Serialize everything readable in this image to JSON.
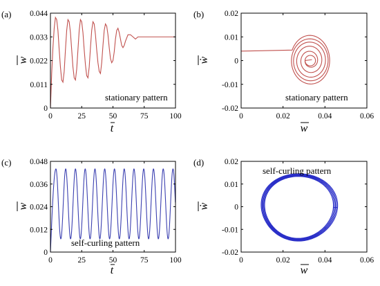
{
  "chart_data": [
    {
      "panel_label": "(a)",
      "type": "line",
      "x_label": "t",
      "y_label": "w",
      "xlim": [
        0,
        100
      ],
      "ylim": [
        0,
        0.044
      ],
      "xticks": [
        "0",
        "25",
        "50",
        "75",
        "100"
      ],
      "yticks": [
        "0",
        "0.011",
        "0.022",
        "0.033",
        "0.044"
      ],
      "annotation": "stationary pattern",
      "color": "#c0504d",
      "series": [
        {
          "x": [
            0,
            1,
            2,
            3,
            4,
            5,
            6,
            7,
            8,
            9,
            10,
            11,
            12,
            13,
            14,
            15,
            16,
            17,
            18,
            19,
            20,
            21,
            22,
            23,
            24,
            25,
            26,
            27,
            28,
            29,
            30,
            31,
            32,
            33,
            34,
            35,
            36,
            37,
            38,
            39,
            40,
            41,
            42,
            43,
            44,
            45,
            46,
            47,
            48,
            49,
            50,
            51,
            52,
            53,
            54,
            55,
            56,
            57,
            58,
            59,
            60,
            62,
            64,
            66,
            68,
            70,
            75,
            80,
            90,
            100
          ],
          "y": [
            0,
            0.016,
            0.028,
            0.037,
            0.042,
            0.041,
            0.036,
            0.027,
            0.019,
            0.013,
            0.012,
            0.017,
            0.027,
            0.036,
            0.041,
            0.04,
            0.035,
            0.027,
            0.019,
            0.014,
            0.013,
            0.018,
            0.027,
            0.036,
            0.041,
            0.04,
            0.035,
            0.027,
            0.02,
            0.015,
            0.014,
            0.019,
            0.028,
            0.036,
            0.04,
            0.039,
            0.034,
            0.027,
            0.021,
            0.017,
            0.016,
            0.021,
            0.029,
            0.036,
            0.039,
            0.038,
            0.034,
            0.028,
            0.023,
            0.021,
            0.022,
            0.026,
            0.032,
            0.036,
            0.037,
            0.035,
            0.032,
            0.029,
            0.028,
            0.029,
            0.031,
            0.034,
            0.034,
            0.033,
            0.032,
            0.033,
            0.033,
            0.033,
            0.033,
            0.033
          ]
        }
      ]
    },
    {
      "panel_label": "(b)",
      "type": "line",
      "x_label": "w",
      "y_label": "ẇ",
      "xlim": [
        0,
        0.06
      ],
      "ylim": [
        -0.02,
        0.02
      ],
      "xticks": [
        "0",
        "0.02",
        "0.04",
        "0.06"
      ],
      "yticks": [
        "-0.02",
        "-0.01",
        "0",
        "0.01",
        "0.02"
      ],
      "annotation": "stationary pattern",
      "color": "#c0504d",
      "spiral": {
        "start": [
          0,
          0.004
        ],
        "center": [
          0.033,
          0.0
        ],
        "x_amplitudes": [
          0.0095,
          0.009,
          0.008,
          0.0065,
          0.0045,
          0.0025
        ],
        "y_amplitudes": [
          0.011,
          0.0095,
          0.0082,
          0.0066,
          0.0045,
          0.0022
        ]
      }
    },
    {
      "panel_label": "(c)",
      "type": "line",
      "x_label": "t",
      "y_label": "w",
      "xlim": [
        0,
        100
      ],
      "ylim": [
        0,
        0.048
      ],
      "xticks": [
        "0",
        "25",
        "50",
        "75",
        "100"
      ],
      "yticks": [
        "0",
        "0.012",
        "0.024",
        "0.036",
        "0.048"
      ],
      "annotation": "self-curling pattern",
      "color": "#3a3fb0",
      "oscillation": {
        "period": 7.8,
        "min": 0.007,
        "max": 0.044,
        "first_peak_t": 4.4
      }
    },
    {
      "panel_label": "(d)",
      "type": "line",
      "x_label": "w",
      "y_label": "ẇ",
      "xlim": [
        0,
        0.06
      ],
      "ylim": [
        -0.02,
        0.02
      ],
      "xticks": [
        "0",
        "0.02",
        "0.04",
        "0.06"
      ],
      "yticks": [
        "-0.02",
        "-0.01",
        "0",
        "0.01",
        "0.02"
      ],
      "annotation": "self-curling pattern",
      "color": "#2a2fc8",
      "limit_cycle": {
        "center": [
          0.026,
          -0.0003
        ],
        "x_radius": 0.0182,
        "y_radius": 0.0148
      }
    }
  ]
}
